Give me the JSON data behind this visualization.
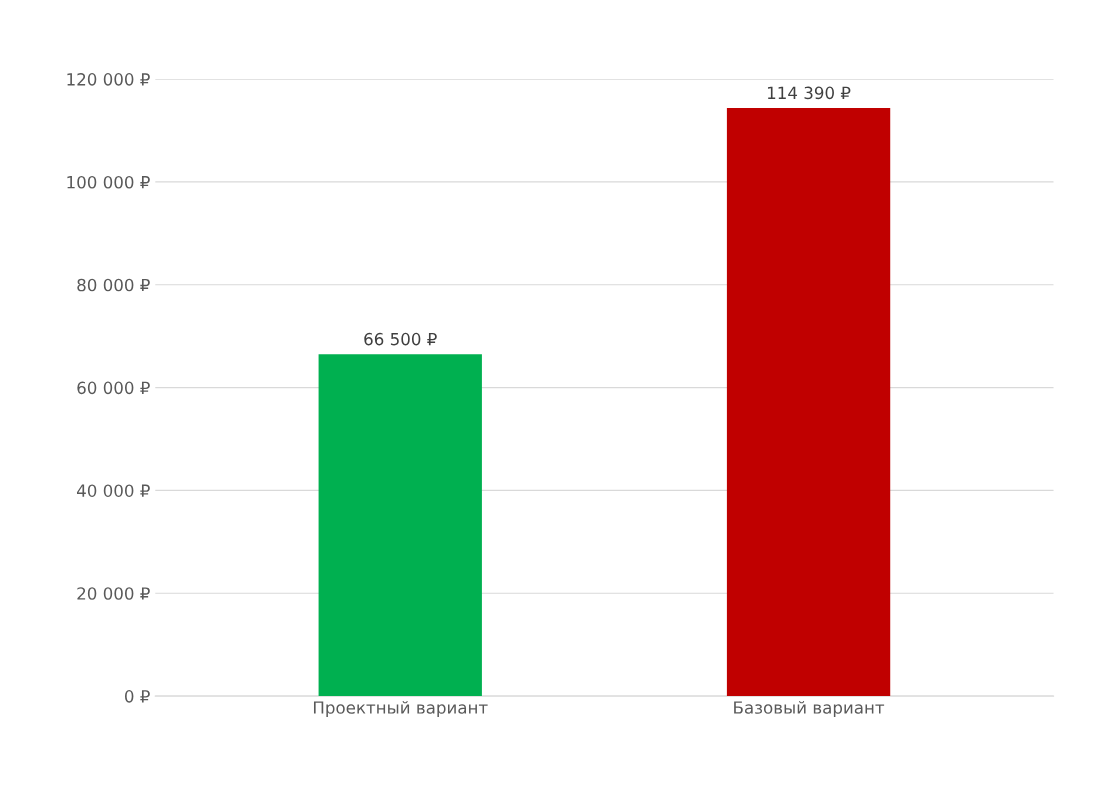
{
  "chart_data": {
    "type": "bar",
    "categories": [
      "Проектный вариант",
      "Базовый вариант"
    ],
    "values": [
      66500,
      114390
    ],
    "colors": [
      "#00b050",
      "#c00000"
    ],
    "value_labels": [
      "66 500 ₽",
      "114 390 ₽"
    ],
    "ylim": [
      0,
      120000
    ],
    "yticks": [
      {
        "value": 0,
        "label": "0 ₽"
      },
      {
        "value": 20000,
        "label": "20 000 ₽"
      },
      {
        "value": 40000,
        "label": "40 000 ₽"
      },
      {
        "value": 60000,
        "label": "60 000 ₽"
      },
      {
        "value": 80000,
        "label": "80 000 ₽"
      },
      {
        "value": 100000,
        "label": "100 000 ₽"
      },
      {
        "value": 120000,
        "label": "120 000 ₽"
      }
    ],
    "grid": "y",
    "legend": false
  }
}
